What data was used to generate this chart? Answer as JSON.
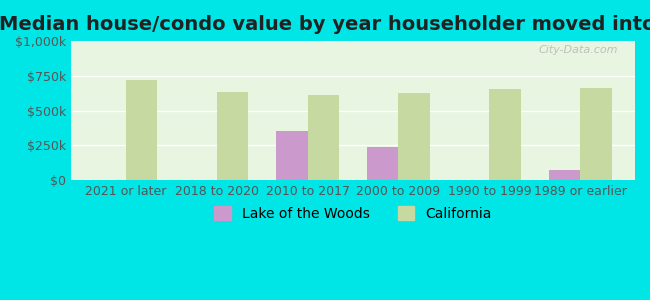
{
  "title": "Median house/condo value by year householder moved into unit",
  "categories": [
    "2021 or later",
    "2018 to 2020",
    "2010 to 2017",
    "2000 to 2009",
    "1990 to 1999",
    "1989 or earlier"
  ],
  "lake_values": [
    null,
    null,
    350000,
    237000,
    null,
    75000
  ],
  "california_values": [
    720000,
    635000,
    610000,
    625000,
    655000,
    660000
  ],
  "lake_color": "#cc99cc",
  "california_color": "#c5d9a0",
  "background_color": "#00e5e5",
  "plot_bg_color_top": "#e8f5e0",
  "plot_bg_color_bottom": "#ffffff",
  "ylim": [
    0,
    1000000
  ],
  "yticks": [
    0,
    250000,
    500000,
    750000,
    1000000
  ],
  "ytick_labels": [
    "$0",
    "$250k",
    "$500k",
    "$750k",
    "$1,000k"
  ],
  "bar_width": 0.35,
  "legend_labels": [
    "Lake of the Woods",
    "California"
  ],
  "watermark": "City-Data.com",
  "title_fontsize": 14,
  "tick_fontsize": 9,
  "legend_fontsize": 10
}
